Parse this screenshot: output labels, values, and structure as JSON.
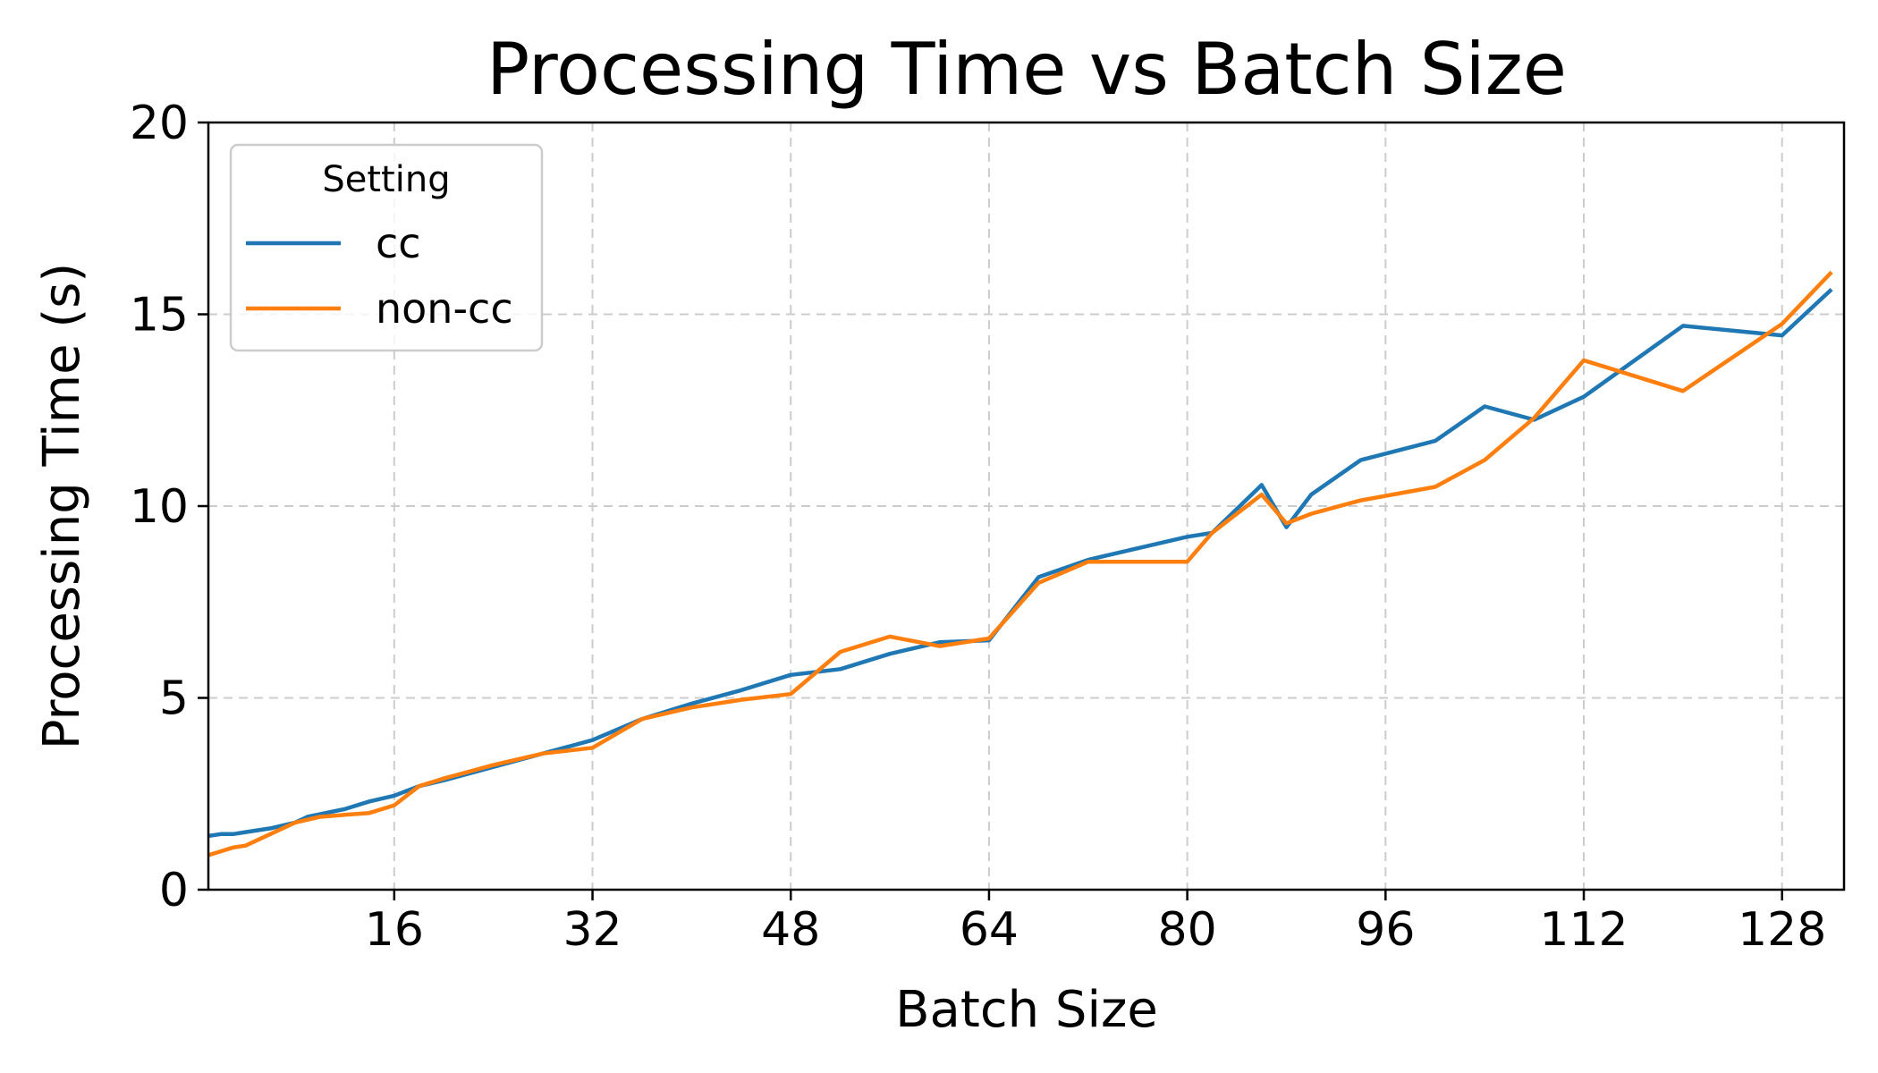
{
  "chart_data": {
    "type": "line",
    "title": "Processing Time vs Batch Size",
    "xlabel": "Batch Size",
    "ylabel": "Processing Time (s)",
    "xlim": [
      1,
      133
    ],
    "ylim": [
      0,
      20
    ],
    "xticks": [
      16,
      32,
      48,
      64,
      80,
      96,
      112,
      128
    ],
    "yticks": [
      0,
      5,
      10,
      15,
      20
    ],
    "grid": true,
    "legend": {
      "title": "Setting",
      "placement": "top-left"
    },
    "series": [
      {
        "name": "cc",
        "color": "#1f77b4",
        "x": [
          1,
          2,
          3,
          4,
          6,
          8,
          9,
          12,
          14,
          16,
          18,
          20,
          24,
          28,
          32,
          36,
          40,
          44,
          48,
          52,
          56,
          60,
          64,
          68,
          72,
          76,
          80,
          82,
          86,
          88,
          90,
          94,
          100,
          104,
          108,
          112,
          120,
          128,
          132
        ],
        "y": [
          1.4,
          1.45,
          1.45,
          1.5,
          1.6,
          1.75,
          1.9,
          2.1,
          2.3,
          2.45,
          2.7,
          2.85,
          3.2,
          3.55,
          3.9,
          4.45,
          4.85,
          5.2,
          5.6,
          5.75,
          6.15,
          6.45,
          6.5,
          8.15,
          8.6,
          8.9,
          9.2,
          9.3,
          10.55,
          9.45,
          10.3,
          11.2,
          11.7,
          12.6,
          12.25,
          12.85,
          14.7,
          14.45,
          15.65
        ]
      },
      {
        "name": "non-cc",
        "color": "#ff7f0e",
        "x": [
          1,
          2,
          3,
          4,
          6,
          8,
          10,
          12,
          14,
          16,
          18,
          20,
          24,
          28,
          32,
          36,
          40,
          44,
          48,
          52,
          56,
          60,
          64,
          68,
          72,
          76,
          80,
          82,
          86,
          88,
          90,
          94,
          100,
          104,
          108,
          112,
          120,
          128,
          132
        ],
        "y": [
          0.9,
          1.0,
          1.1,
          1.15,
          1.45,
          1.75,
          1.9,
          1.95,
          2.0,
          2.2,
          2.7,
          2.9,
          3.25,
          3.55,
          3.7,
          4.45,
          4.75,
          4.95,
          5.1,
          6.2,
          6.6,
          6.35,
          6.55,
          8.0,
          8.55,
          8.55,
          8.55,
          9.3,
          10.3,
          9.55,
          9.8,
          10.15,
          10.5,
          11.2,
          12.3,
          13.8,
          13.0,
          14.75,
          16.1
        ]
      }
    ]
  }
}
